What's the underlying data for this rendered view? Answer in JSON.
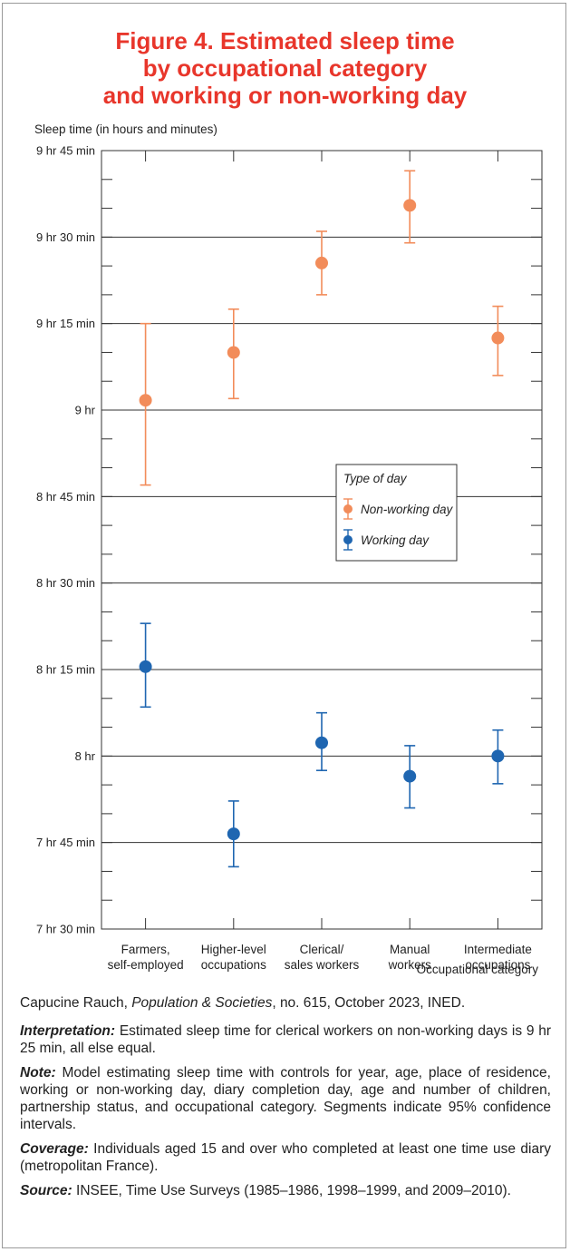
{
  "title_lines": [
    "Figure 4. Estimated sleep time",
    "by occupational category",
    "and working or non-working day"
  ],
  "colors": {
    "nonworking": "#f28c5a",
    "working": "#1f66b1",
    "title": "#e8362b"
  },
  "chart_data": {
    "type": "scatter",
    "ylabel": "Sleep time (in hours and minutes)",
    "xlabel": "Occupational category",
    "ylim": [
      450,
      585
    ],
    "y_unit": "minutes",
    "yticks": [
      {
        "value": 450,
        "label": "7 hr 30 min"
      },
      {
        "value": 465,
        "label": "7 hr 45 min"
      },
      {
        "value": 480,
        "label": "8 hr"
      },
      {
        "value": 495,
        "label": "8 hr 15 min"
      },
      {
        "value": 510,
        "label": "8 hr 30 min"
      },
      {
        "value": 525,
        "label": "8 hr 45 min"
      },
      {
        "value": 540,
        "label": "9 hr"
      },
      {
        "value": 555,
        "label": "9 hr 15 min"
      },
      {
        "value": 570,
        "label": "9 hr 30 min"
      },
      {
        "value": 585,
        "label": "9 hr 45 min"
      }
    ],
    "categories": [
      [
        "Farmers,",
        "self-employed"
      ],
      [
        "Higher-level",
        "occupations"
      ],
      [
        "Clerical/",
        "sales workers"
      ],
      [
        "Manual",
        "workers"
      ],
      [
        "Intermediate",
        "occupations"
      ]
    ],
    "series": [
      {
        "name": "Non-working day",
        "values": [
          541.7,
          550,
          565.5,
          575.5,
          552.5
        ],
        "lower": [
          527,
          542,
          560,
          569,
          546
        ],
        "upper": [
          555,
          557.5,
          571,
          581.5,
          558
        ]
      },
      {
        "name": "Working day",
        "values": [
          495.5,
          466.5,
          482.3,
          476.5,
          480
        ],
        "lower": [
          488.5,
          460.8,
          477.5,
          471,
          475.2
        ],
        "upper": [
          503,
          472.2,
          487.5,
          481.8,
          484.5
        ]
      }
    ],
    "legend": {
      "title": "Type of day",
      "position": "right-middle"
    }
  },
  "footer": {
    "credit_author": "Capucine Rauch, ",
    "credit_journal": "Population & Societies",
    "credit_rest": ", no. 615, October 2023, INED.",
    "interpretation_label": "Interpretation:",
    "interpretation_text": " Estimated sleep time for clerical workers on non-working days is 9 hr 25 min, all else equal.",
    "note_label": "Note:",
    "note_text": " Model estimating sleep time with controls for year, age, place of residence, working or non-working day, diary completion day, age and number of children, partnership status, and occupational category. Segments indicate 95% confidence intervals.",
    "coverage_label": "Coverage:",
    "coverage_text": " Individuals aged 15 and over who completed at least one time use diary (metropolitan France).",
    "source_label": "Source:",
    "source_text": " INSEE, Time Use Surveys (1985–1986, 1998–1999, and 2009–2010)."
  }
}
